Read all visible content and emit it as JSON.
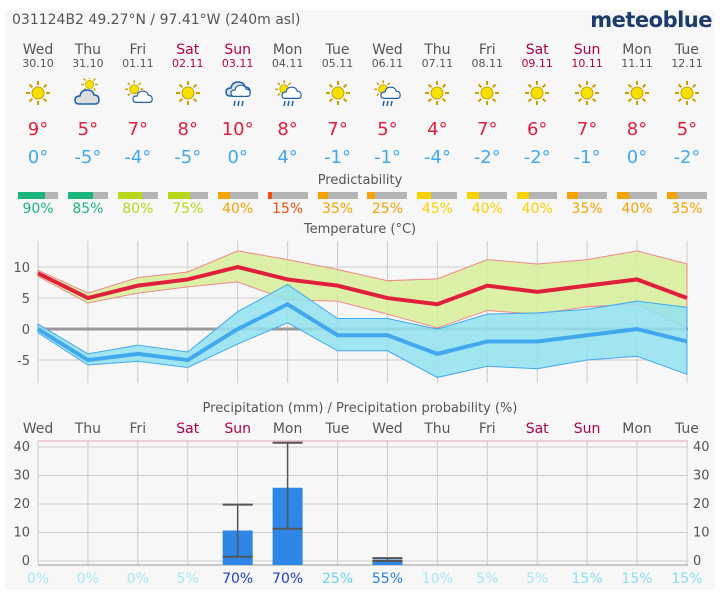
{
  "header": {
    "location": "031124B2  49.27°N / 97.41°W (240m asl)",
    "brand": "meteoblue"
  },
  "days": [
    {
      "name": "Wed",
      "date": "30.10",
      "weekend": false,
      "icon": "sun",
      "max": "9°",
      "min": "0°",
      "pred": "90%",
      "pred_value": 90,
      "pred_color": "#1db67a",
      "precip_prob": "0%",
      "prob_color": "#a6e6f6"
    },
    {
      "name": "Thu",
      "date": "31.10",
      "weekend": false,
      "icon": "cloud-sun",
      "max": "5°",
      "min": "-5°",
      "pred": "85%",
      "pred_value": 85,
      "pred_color": "#1db67a",
      "precip_prob": "0%",
      "prob_color": "#a6e6f6"
    },
    {
      "name": "Fri",
      "date": "01.11",
      "weekend": false,
      "icon": "sun-cloud",
      "max": "7°",
      "min": "-4°",
      "pred": "80%",
      "pred_value": 80,
      "pred_color": "#b8d81a",
      "precip_prob": "0%",
      "prob_color": "#a6e6f6"
    },
    {
      "name": "Sat",
      "date": "02.11",
      "weekend": true,
      "icon": "sun",
      "max": "8°",
      "min": "-5°",
      "pred": "75%",
      "pred_value": 75,
      "pred_color": "#b8d81a",
      "precip_prob": "5%",
      "prob_color": "#a6e6f6"
    },
    {
      "name": "Sun",
      "date": "03.11",
      "weekend": true,
      "icon": "cloud-rain",
      "max": "10°",
      "min": "0°",
      "pred": "40%",
      "pred_value": 40,
      "pred_color": "#f5a300",
      "precip_prob": "70%",
      "prob_color": "#1a3fc8"
    },
    {
      "name": "Mon",
      "date": "04.11",
      "weekend": false,
      "icon": "sun-cloud-rain",
      "max": "8°",
      "min": "4°",
      "pred": "15%",
      "pred_value": 15,
      "pred_color": "#f04e10",
      "precip_prob": "70%",
      "prob_color": "#1a3fc8"
    },
    {
      "name": "Tue",
      "date": "05.11",
      "weekend": false,
      "icon": "sun",
      "max": "7°",
      "min": "-1°",
      "pred": "35%",
      "pred_value": 35,
      "pred_color": "#f5a300",
      "precip_prob": "25%",
      "prob_color": "#6cd0f0"
    },
    {
      "name": "Wed",
      "date": "06.11",
      "weekend": false,
      "icon": "sun-cloud-rain",
      "max": "5°",
      "min": "-1°",
      "pred": "25%",
      "pred_value": 25,
      "pred_color": "#f5a300",
      "precip_prob": "55%",
      "prob_color": "#2b7fe0"
    },
    {
      "name": "Thu",
      "date": "07.11",
      "weekend": false,
      "icon": "sun",
      "max": "4°",
      "min": "-4°",
      "pred": "45%",
      "pred_value": 45,
      "pred_color": "#f5d200",
      "precip_prob": "10%",
      "prob_color": "#a6e6f6"
    },
    {
      "name": "Fri",
      "date": "08.11",
      "weekend": false,
      "icon": "sun",
      "max": "7°",
      "min": "-2°",
      "pred": "40%",
      "pred_value": 40,
      "pred_color": "#f5d200",
      "precip_prob": "5%",
      "prob_color": "#a6e6f6"
    },
    {
      "name": "Sat",
      "date": "09.11",
      "weekend": true,
      "icon": "sun",
      "max": "6°",
      "min": "-2°",
      "pred": "40%",
      "pred_value": 40,
      "pred_color": "#f5d200",
      "precip_prob": "5%",
      "prob_color": "#a6e6f6"
    },
    {
      "name": "Sun",
      "date": "10.11",
      "weekend": true,
      "icon": "sun",
      "max": "7°",
      "min": "-1°",
      "pred": "35%",
      "pred_value": 35,
      "pred_color": "#f5a300",
      "precip_prob": "15%",
      "prob_color": "#8adcf2"
    },
    {
      "name": "Mon",
      "date": "11.11",
      "weekend": false,
      "icon": "sun",
      "max": "8°",
      "min": "0°",
      "pred": "40%",
      "pred_value": 40,
      "pred_color": "#f5a300",
      "precip_prob": "15%",
      "prob_color": "#8adcf2"
    },
    {
      "name": "Tue",
      "date": "12.11",
      "weekend": false,
      "icon": "sun",
      "max": "5°",
      "min": "-2°",
      "pred": "35%",
      "pred_value": 35,
      "pred_color": "#f5a300",
      "precip_prob": "15%",
      "prob_color": "#8adcf2"
    }
  ],
  "predictability_title": "Predictability",
  "chart_data": [
    {
      "type": "line",
      "title": "Temperature (°C)",
      "ylim": [
        -8.7,
        14.2
      ],
      "yticks": [
        "10",
        "5",
        "0",
        "-5"
      ],
      "ytick_values": [
        10,
        5,
        0,
        -5
      ],
      "series": [
        {
          "name": "max",
          "values": [
            9,
            5,
            7,
            8,
            10,
            8,
            7,
            5,
            4,
            7,
            6,
            7,
            8,
            5
          ],
          "color": "#e0203a"
        },
        {
          "name": "max_upper",
          "values": [
            9.5,
            5.8,
            8.3,
            9.2,
            12.6,
            11.2,
            9.6,
            7.8,
            8.1,
            11.2,
            10.5,
            11.2,
            12.6,
            10.5
          ]
        },
        {
          "name": "max_lower",
          "values": [
            8.5,
            4.2,
            5.8,
            6.8,
            7.6,
            4.7,
            4.5,
            2.4,
            0.2,
            3,
            2.4,
            3.6,
            4,
            0.2
          ]
        },
        {
          "name": "min",
          "values": [
            0,
            -5,
            -4,
            -5,
            0,
            4,
            -1,
            -1,
            -4,
            -2,
            -2,
            -1,
            0,
            -2
          ],
          "color": "#42a8ee"
        },
        {
          "name": "min_upper",
          "values": [
            0.8,
            -4,
            -2.6,
            -3.7,
            2.8,
            7.2,
            1.7,
            1.7,
            0,
            2.4,
            2.6,
            3.2,
            4.5,
            3.5
          ]
        },
        {
          "name": "min_lower",
          "values": [
            -0.6,
            -5.8,
            -5.2,
            -6.2,
            -2.4,
            1,
            -3.5,
            -3.5,
            -7.8,
            -6,
            -6.4,
            -5,
            -4.4,
            -7.3
          ]
        }
      ]
    },
    {
      "type": "bar",
      "title": "Precipitation (mm) / Precipitation probability (%)",
      "ylim": [
        0,
        42
      ],
      "yticks": [
        "40",
        "30",
        "20",
        "10",
        "0"
      ],
      "ytick_values": [
        40,
        30,
        20,
        10,
        0
      ],
      "values": [
        0,
        0,
        0,
        0,
        10.7,
        25.7,
        0,
        0.5,
        0,
        0,
        0,
        0,
        0,
        0
      ],
      "err_low": [
        null,
        null,
        null,
        null,
        1.5,
        11.3,
        null,
        0,
        null,
        null,
        null,
        null,
        null,
        null
      ],
      "err_high": [
        null,
        null,
        null,
        null,
        19.8,
        41.5,
        null,
        1,
        null,
        null,
        null,
        null,
        null,
        null
      ]
    }
  ]
}
